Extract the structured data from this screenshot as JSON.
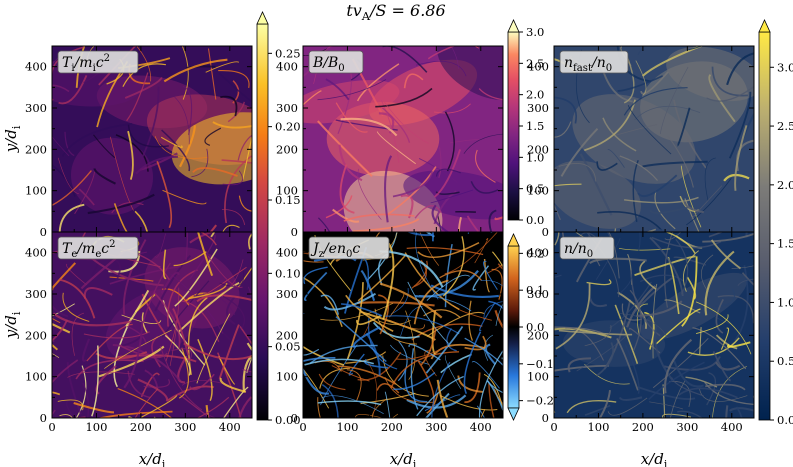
{
  "chart_data": {
    "type": "heatmap",
    "title": "tv_A/S = 6.86",
    "xlabel": "x/d_i",
    "ylabel": "y/d_i",
    "x_ticks": [
      "0",
      "100",
      "200",
      "300",
      "400"
    ],
    "y_ticks": [
      "0",
      "100",
      "200",
      "300",
      "400"
    ],
    "xlim": [
      0,
      450
    ],
    "ylim": [
      0,
      450
    ],
    "panels": [
      {
        "id": "Ti",
        "label": "T_i/m_i c^2",
        "colormap": "inferno",
        "colorbar_group": "temperature"
      },
      {
        "id": "B",
        "label": "B/B_0",
        "colormap": "magma",
        "colorbar_group": "B"
      },
      {
        "id": "nfast",
        "label": "n_fast/n_0",
        "colormap": "cividis",
        "colorbar_group": "density"
      },
      {
        "id": "Te",
        "label": "T_e/m_e c^2",
        "colormap": "inferno",
        "colorbar_group": "temperature"
      },
      {
        "id": "Jz",
        "label": "J_z/en_0c",
        "colormap": "diverging",
        "colorbar_group": "current"
      },
      {
        "id": "n",
        "label": "n/n_0",
        "colormap": "cividis",
        "colorbar_group": "density"
      }
    ],
    "colorbars": [
      {
        "id": "temperature",
        "range": [
          0.0,
          0.27
        ],
        "ticks": [
          "0.00",
          "0.05",
          "0.10",
          "0.15",
          "0.20",
          "0.25"
        ],
        "extend": "max"
      },
      {
        "id": "B",
        "range": [
          0.0,
          3.0
        ],
        "ticks": [
          "0.0",
          "0.5",
          "1.0",
          "1.5",
          "2.0",
          "2.5",
          "3.0"
        ],
        "extend": "max"
      },
      {
        "id": "current",
        "range": [
          -0.22,
          0.22
        ],
        "ticks": [
          "-0.2",
          "-0.1",
          "0.0",
          "0.1",
          "0.2"
        ],
        "extend": "both"
      },
      {
        "id": "density",
        "range": [
          0.0,
          3.3
        ],
        "ticks": [
          "0.0",
          "0.5",
          "1.0",
          "1.5",
          "2.0",
          "2.5",
          "3.0"
        ],
        "extend": "max"
      }
    ]
  }
}
